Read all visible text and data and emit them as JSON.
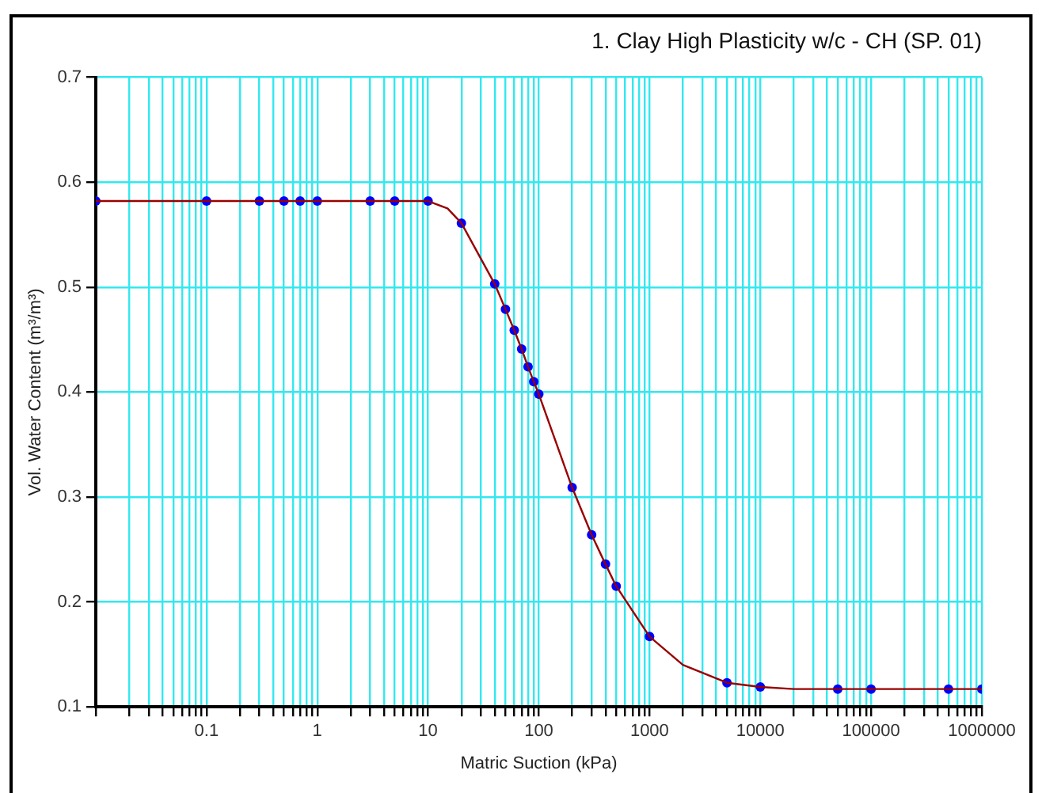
{
  "chart_data": {
    "type": "scatter",
    "title": "1. Clay High Plasticity w/c - CH (SP. 01)",
    "xlabel": "Matric Suction (kPa)",
    "ylabel": "Vol. Water Content (m³/m³)",
    "log": "x",
    "grid": true,
    "legend": false,
    "marker": "circle",
    "xlim": [
      0.01,
      1000000
    ],
    "ylim": [
      0.1,
      0.7
    ],
    "yticks": [
      0.1,
      0.2,
      0.3,
      0.4,
      0.5,
      0.6,
      0.7
    ],
    "xticks": [
      {
        "value": 0.01,
        "label": null
      },
      {
        "value": 0.02,
        "label": null
      },
      {
        "value": 0.03,
        "label": null
      },
      {
        "value": 0.04,
        "label": null
      },
      {
        "value": 0.05,
        "label": null
      },
      {
        "value": 0.06,
        "label": null
      },
      {
        "value": 0.07,
        "label": null
      },
      {
        "value": 0.08,
        "label": null
      },
      {
        "value": 0.09,
        "label": null
      },
      0.1,
      {
        "value": 0.2,
        "label": null
      },
      {
        "value": 0.3,
        "label": null
      },
      {
        "value": 0.4,
        "label": null
      },
      {
        "value": 0.5,
        "label": null
      },
      {
        "value": 0.6,
        "label": null
      },
      {
        "value": 0.7,
        "label": null
      },
      {
        "value": 0.8,
        "label": null
      },
      {
        "value": 0.9,
        "label": null
      },
      1,
      {
        "value": 2,
        "label": null
      },
      {
        "value": 3,
        "label": null
      },
      {
        "value": 4,
        "label": null
      },
      {
        "value": 5,
        "label": null
      },
      {
        "value": 6,
        "label": null
      },
      {
        "value": 7,
        "label": null
      },
      {
        "value": 8,
        "label": null
      },
      {
        "value": 9,
        "label": null
      },
      10,
      {
        "value": 20,
        "label": null
      },
      {
        "value": 30,
        "label": null
      },
      {
        "value": 40,
        "label": null
      },
      {
        "value": 50,
        "label": null
      },
      {
        "value": 60,
        "label": null
      },
      {
        "value": 70,
        "label": null
      },
      {
        "value": 80,
        "label": null
      },
      {
        "value": 90,
        "label": null
      },
      100,
      {
        "value": 200,
        "label": null
      },
      {
        "value": 300,
        "label": null
      },
      {
        "value": 400,
        "label": null
      },
      {
        "value": 500,
        "label": null
      },
      {
        "value": 600,
        "label": null
      },
      {
        "value": 700,
        "label": null
      },
      {
        "value": 800,
        "label": null
      },
      {
        "value": 900,
        "label": null
      },
      1000,
      {
        "value": 2000,
        "label": null
      },
      {
        "value": 3000,
        "label": null
      },
      {
        "value": 4000,
        "label": null
      },
      {
        "value": 5000,
        "label": null
      },
      {
        "value": 6000,
        "label": null
      },
      {
        "value": 7000,
        "label": null
      },
      {
        "value": 8000,
        "label": null
      },
      {
        "value": 9000,
        "label": null
      },
      10000,
      {
        "value": 20000,
        "label": null
      },
      {
        "value": 30000,
        "label": null
      },
      {
        "value": 40000,
        "label": null
      },
      {
        "value": 50000,
        "label": null
      },
      {
        "value": 60000,
        "label": null
      },
      {
        "value": 70000,
        "label": null
      },
      {
        "value": 80000,
        "label": null
      },
      {
        "value": 90000,
        "label": null
      },
      100000,
      {
        "value": 200000,
        "label": null
      },
      {
        "value": 300000,
        "label": null
      },
      {
        "value": 400000,
        "label": null
      },
      {
        "value": 500000,
        "label": null
      },
      {
        "value": 600000,
        "label": null
      },
      {
        "value": 700000,
        "label": null
      },
      {
        "value": 800000,
        "label": null
      },
      {
        "value": 900000,
        "label": null
      },
      1000000
    ],
    "series": [
      {
        "type": "line",
        "marker": "none",
        "color": "#990000",
        "x": [
          0.01,
          0.1,
          1,
          10,
          15,
          20,
          40,
          50,
          60,
          70,
          80,
          90,
          100,
          200,
          300,
          400,
          500,
          1000,
          2000,
          5000,
          10000,
          20000,
          100000,
          1000000
        ],
        "values": [
          0.582,
          0.582,
          0.582,
          0.582,
          0.575,
          0.561,
          0.503,
          0.479,
          0.459,
          0.441,
          0.424,
          0.41,
          0.398,
          0.309,
          0.264,
          0.236,
          0.215,
          0.167,
          0.14,
          0.123,
          0.119,
          0.117,
          0.117,
          0.117
        ]
      },
      {
        "type": "scatter",
        "color": "#0000ff",
        "x": [
          0.01,
          0.1,
          0.3,
          0.5,
          0.7,
          1,
          3,
          5,
          10,
          20,
          40,
          50,
          60,
          70,
          80,
          90,
          100,
          200,
          300,
          400,
          500,
          1000,
          5000,
          10000,
          50000,
          100000,
          500000,
          1000000
        ],
        "values": [
          0.582,
          0.582,
          0.582,
          0.582,
          0.582,
          0.582,
          0.582,
          0.582,
          0.582,
          0.561,
          0.503,
          0.479,
          0.459,
          0.441,
          0.424,
          0.41,
          0.398,
          0.309,
          0.264,
          0.236,
          0.215,
          0.167,
          0.123,
          0.119,
          0.117,
          0.117,
          0.117,
          0.117
        ]
      }
    ]
  }
}
